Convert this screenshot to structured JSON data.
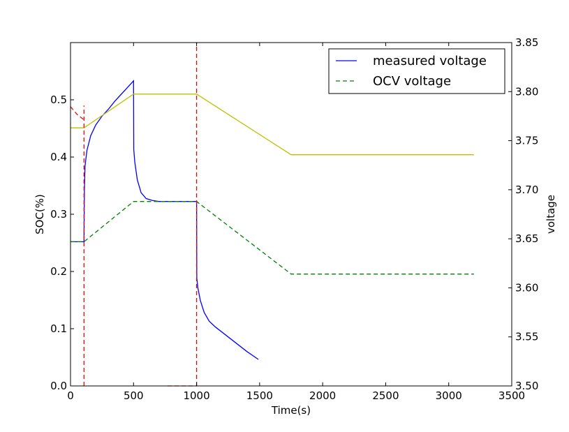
{
  "chart_data": {
    "type": "line",
    "xlabel": "Time(s)",
    "ylabel_left": "SOC(%)",
    "ylabel_right": "voltage",
    "xlim": [
      0,
      3500
    ],
    "ylim_left": [
      0,
      0.6
    ],
    "ylim_right": [
      3.5,
      3.85
    ],
    "x_ticks": [
      "0",
      "500",
      "1000",
      "1500",
      "2000",
      "2500",
      "3000",
      "3500"
    ],
    "y_left_ticks": [
      "0.0",
      "0.1",
      "0.2",
      "0.3",
      "0.4",
      "0.5"
    ],
    "y_right_ticks": [
      "3.50",
      "3.55",
      "3.60",
      "3.65",
      "3.70",
      "3.75",
      "3.80",
      "3.85"
    ],
    "grid": false,
    "legend_position": "top-right",
    "legend": [
      {
        "label": "measured voltage",
        "color": "#0000ff",
        "style": "solid"
      },
      {
        "label": "OCV voltage",
        "color": "#008000",
        "style": "dashed"
      }
    ],
    "series": [
      {
        "axis": "right",
        "color": "#0000ff",
        "style": "solid",
        "points": [
          [
            0,
            3.647
          ],
          [
            100,
            3.647
          ],
          [
            107,
            3.647
          ],
          [
            110,
            3.7
          ],
          [
            115,
            3.724
          ],
          [
            130,
            3.74
          ],
          [
            160,
            3.755
          ],
          [
            200,
            3.766
          ],
          [
            250,
            3.775
          ],
          [
            300,
            3.782
          ],
          [
            350,
            3.79
          ],
          [
            400,
            3.797
          ],
          [
            450,
            3.804
          ],
          [
            500,
            3.811
          ],
          [
            502,
            3.741
          ],
          [
            510,
            3.728
          ],
          [
            530,
            3.71
          ],
          [
            560,
            3.697
          ],
          [
            600,
            3.691
          ],
          [
            650,
            3.689
          ],
          [
            700,
            3.688
          ],
          [
            800,
            3.688
          ],
          [
            900,
            3.688
          ],
          [
            1000,
            3.688
          ],
          [
            1002,
            3.61
          ],
          [
            1010,
            3.6
          ],
          [
            1030,
            3.587
          ],
          [
            1060,
            3.575
          ],
          [
            1100,
            3.566
          ],
          [
            1150,
            3.56
          ],
          [
            1200,
            3.555
          ],
          [
            1300,
            3.545
          ],
          [
            1400,
            3.535
          ],
          [
            1490,
            3.527
          ]
        ]
      },
      {
        "axis": "right",
        "color": "#008000",
        "style": "dashed",
        "points": [
          [
            0,
            3.647
          ],
          [
            107,
            3.647
          ],
          [
            500,
            3.688
          ],
          [
            1000,
            3.688
          ],
          [
            1750,
            3.614
          ],
          [
            3200,
            3.614
          ]
        ]
      },
      {
        "axis": "left",
        "color": "#bfbf00",
        "style": "solid",
        "points": [
          [
            0,
            0.451
          ],
          [
            107,
            0.451
          ],
          [
            500,
            0.51
          ],
          [
            1000,
            0.51
          ],
          [
            1750,
            0.404
          ],
          [
            3200,
            0.404
          ]
        ]
      },
      {
        "axis": "left",
        "color": "#ff0000",
        "style": "dashed",
        "points": [
          [
            0,
            0.488
          ],
          [
            50,
            0.475
          ],
          [
            107,
            0.465
          ]
        ]
      },
      {
        "axis": "left",
        "color": "#ff0000",
        "style": "dashed",
        "points": [
          [
            107,
            0.0
          ],
          [
            107,
            0.49
          ]
        ]
      },
      {
        "axis": "left",
        "color": "#ff0000",
        "style": "dashed",
        "points": [
          [
            1000,
            0.0
          ],
          [
            1000,
            0.6
          ]
        ]
      },
      {
        "axis": "left",
        "color": "#ff0000",
        "style": "dashed",
        "points": [
          [
            770,
            0.0
          ],
          [
            1000,
            0.0
          ]
        ]
      }
    ]
  }
}
